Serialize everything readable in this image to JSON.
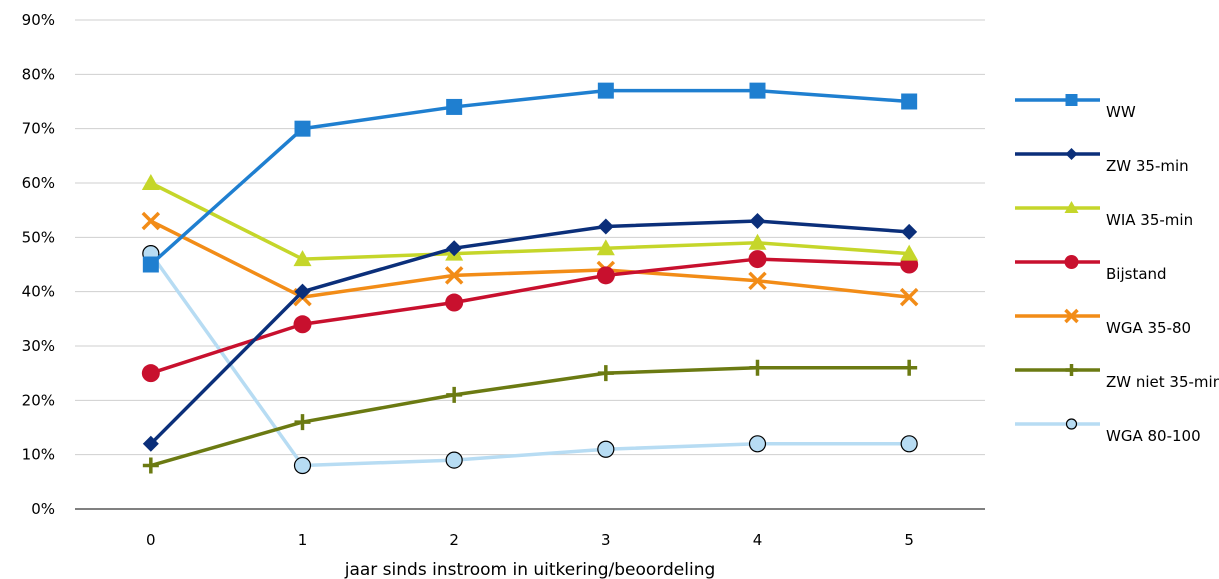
{
  "chart_data": {
    "type": "line",
    "title": "",
    "xlabel": "jaar sinds instroom in uitkering/beoordeling",
    "ylabel": "",
    "x": [
      "0",
      "1",
      "2",
      "3",
      "4",
      "5"
    ],
    "ylim": [
      0,
      90
    ],
    "yticks": [
      "0%",
      "10%",
      "20%",
      "30%",
      "40%",
      "50%",
      "60%",
      "70%",
      "80%",
      "90%"
    ],
    "grid": true,
    "legend_position": "right",
    "series": [
      {
        "name": "WW",
        "color": "#1f7fd0",
        "marker": "square",
        "values": [
          45,
          70,
          74,
          77,
          77,
          75
        ]
      },
      {
        "name": "ZW 35-min",
        "color": "#0b2f7a",
        "marker": "diamond",
        "values": [
          12,
          40,
          48,
          52,
          53,
          51
        ]
      },
      {
        "name": "WIA 35-min",
        "color": "#c5d62a",
        "marker": "triangle",
        "values": [
          60,
          46,
          47,
          48,
          49,
          47
        ]
      },
      {
        "name": "Bijstand",
        "color": "#c8102e",
        "marker": "circle",
        "values": [
          25,
          34,
          38,
          43,
          46,
          45
        ]
      },
      {
        "name": "WGA 35-80",
        "color": "#f28c17",
        "marker": "x",
        "values": [
          53,
          39,
          43,
          44,
          42,
          39
        ]
      },
      {
        "name": "ZW niet 35-min",
        "color": "#6b7a12",
        "marker": "plus",
        "values": [
          8,
          16,
          21,
          25,
          26,
          26
        ]
      },
      {
        "name": "WGA 80-100",
        "color": "#b7dcf3",
        "marker": "open-circle",
        "values": [
          47,
          8,
          9,
          11,
          12,
          12
        ]
      }
    ]
  }
}
